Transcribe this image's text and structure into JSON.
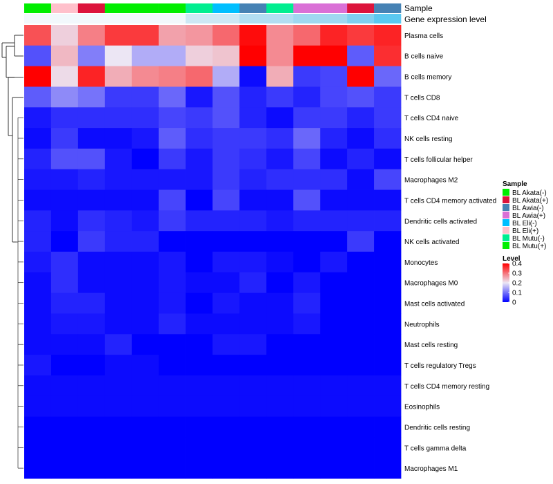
{
  "chart_data": {
    "type": "heatmap",
    "title": "",
    "annotations": {
      "sample_label": "Sample",
      "expression_label": "Gene expression level",
      "sample_columns": [
        "BL Mutu(+)",
        "BL Eli(+)",
        "BL Akata(+)",
        "BL Mutu(+)",
        "BL Mutu(+)",
        "BL Mutu(+)",
        "BL Mutu(-)",
        "BL Eli(-)",
        "BL Awia(-)",
        "BL Mutu(-)",
        "BL Awia(+)",
        "BL Awia(+)",
        "BL Akata(+)",
        "BL Awia(-)"
      ],
      "expression_colors": [
        "#f2f8fc",
        "#f2f8fc",
        "#f2f8fc",
        "#f2f8fc",
        "#f2f8fc",
        "#f2f8fc",
        "#cde8f5",
        "#cde8f5",
        "#b2def2",
        "#b2def2",
        "#9fd8f1",
        "#9fd8f1",
        "#7fd0f0",
        "#5ac8f0"
      ]
    },
    "rows": [
      "Plasma cells",
      "B cells naive",
      "B cells memory",
      "T cells CD8",
      "T cells CD4 naive",
      "NK cells resting",
      "T cells follicular helper",
      "Macrophages M2",
      "T cells CD4 memory activated",
      "Dendritic cells activated",
      "NK cells activated",
      "Monocytes",
      "Macrophages M0",
      "Mast cells activated",
      "Neutrophils",
      "Mast cells resting",
      "T cells regulatory  Tregs",
      "T cells CD4 memory resting",
      "Eosinophils",
      "Dendritic cells resting",
      "T cells gamma delta",
      "Macrophages M1"
    ],
    "values": [
      [
        0.33,
        0.22,
        0.29,
        0.35,
        0.35,
        0.26,
        0.27,
        0.31,
        0.39,
        0.28,
        0.31,
        0.37,
        0.35,
        0.37
      ],
      [
        0.07,
        0.24,
        0.11,
        0.2,
        0.15,
        0.15,
        0.22,
        0.23,
        0.41,
        0.28,
        0.42,
        0.42,
        0.08,
        0.36
      ],
      [
        0.42,
        0.21,
        0.37,
        0.25,
        0.28,
        0.29,
        0.31,
        0.15,
        0.01,
        0.25,
        0.05,
        0.06,
        0.42,
        0.09
      ],
      [
        0.08,
        0.12,
        0.1,
        0.05,
        0.05,
        0.09,
        0.02,
        0.07,
        0.03,
        0.05,
        0.03,
        0.06,
        0.07,
        0.05
      ],
      [
        0.02,
        0.04,
        0.04,
        0.04,
        0.04,
        0.06,
        0.05,
        0.07,
        0.03,
        0.01,
        0.05,
        0.05,
        0.03,
        0.05
      ],
      [
        0.01,
        0.05,
        0.01,
        0.01,
        0.02,
        0.08,
        0.04,
        0.05,
        0.05,
        0.04,
        0.09,
        0.03,
        0.01,
        0.04
      ],
      [
        0.03,
        0.07,
        0.07,
        0.02,
        0.0,
        0.05,
        0.02,
        0.05,
        0.04,
        0.02,
        0.06,
        0.01,
        0.03,
        0.01
      ],
      [
        0.02,
        0.02,
        0.03,
        0.02,
        0.02,
        0.02,
        0.02,
        0.05,
        0.03,
        0.04,
        0.04,
        0.04,
        0.01,
        0.06
      ],
      [
        0.01,
        0.01,
        0.01,
        0.01,
        0.01,
        0.06,
        0.0,
        0.06,
        0.01,
        0.01,
        0.07,
        0.01,
        0.01,
        0.01
      ],
      [
        0.03,
        0.01,
        0.04,
        0.03,
        0.02,
        0.05,
        0.03,
        0.03,
        0.03,
        0.02,
        0.03,
        0.03,
        0.03,
        0.03
      ],
      [
        0.03,
        0.0,
        0.05,
        0.03,
        0.03,
        0.0,
        0.0,
        0.0,
        0.0,
        0.0,
        0.0,
        0.0,
        0.05,
        0.0
      ],
      [
        0.02,
        0.04,
        0.01,
        0.01,
        0.01,
        0.02,
        0.0,
        0.02,
        0.02,
        0.01,
        0.0,
        0.02,
        0.0,
        0.0
      ],
      [
        0.01,
        0.04,
        0.01,
        0.01,
        0.01,
        0.02,
        0.01,
        0.01,
        0.03,
        0.0,
        0.02,
        0.0,
        0.0,
        0.0
      ],
      [
        0.01,
        0.03,
        0.03,
        0.01,
        0.01,
        0.02,
        0.0,
        0.02,
        0.01,
        0.01,
        0.03,
        0.0,
        0.0,
        0.0
      ],
      [
        0.01,
        0.02,
        0.02,
        0.01,
        0.01,
        0.03,
        0.01,
        0.01,
        0.01,
        0.01,
        0.02,
        0.0,
        0.0,
        0.0
      ],
      [
        0.01,
        0.01,
        0.01,
        0.03,
        0.0,
        0.0,
        0.0,
        0.02,
        0.02,
        0.0,
        0.0,
        0.0,
        0.0,
        0.0
      ],
      [
        0.02,
        0.0,
        0.0,
        0.01,
        0.01,
        0.0,
        0.0,
        0.0,
        0.0,
        0.0,
        0.0,
        0.0,
        0.0,
        0.0
      ],
      [
        0.01,
        0.01,
        0.01,
        0.01,
        0.01,
        0.01,
        0.01,
        0.01,
        0.01,
        0.01,
        0.01,
        0.01,
        0.01,
        0.01
      ],
      [
        0.01,
        0.01,
        0.01,
        0.01,
        0.01,
        0.01,
        0.01,
        0.01,
        0.01,
        0.01,
        0.01,
        0.01,
        0.01,
        0.01
      ],
      [
        0.0,
        0.0,
        0.0,
        0.0,
        0.0,
        0.0,
        0.0,
        0.0,
        0.0,
        0.0,
        0.0,
        0.0,
        0.0,
        0.0
      ],
      [
        0.0,
        0.0,
        0.0,
        0.0,
        0.0,
        0.0,
        0.0,
        0.0,
        0.0,
        0.0,
        0.0,
        0.0,
        0.0,
        0.0
      ],
      [
        0.0,
        0.0,
        0.0,
        0.0,
        0.0,
        0.0,
        0.0,
        0.0,
        0.0,
        0.0,
        0.0,
        0.0,
        0.0,
        0.0
      ]
    ],
    "legend_sample": {
      "title": "Sample",
      "entries": [
        {
          "label": "BL Akata(-)",
          "color": "#00ee00"
        },
        {
          "label": "BL Akata(+)",
          "color": "#dc143c"
        },
        {
          "label": "BL Awia(-)",
          "color": "#4682b4"
        },
        {
          "label": "BL Awia(+)",
          "color": "#da70d6"
        },
        {
          "label": "BL Eli(-)",
          "color": "#00bfff"
        },
        {
          "label": "BL Eli(+)",
          "color": "#ffc0cb"
        },
        {
          "label": "BL Mutu(-)",
          "color": "#00ee90"
        },
        {
          "label": "BL Mutu(+)",
          "color": "#00ee00"
        }
      ]
    },
    "legend_level": {
      "title": "Level",
      "ticks": [
        "0.4",
        "0.3",
        "0.2",
        "0.1",
        "0"
      ],
      "range": [
        0,
        0.4
      ]
    }
  }
}
